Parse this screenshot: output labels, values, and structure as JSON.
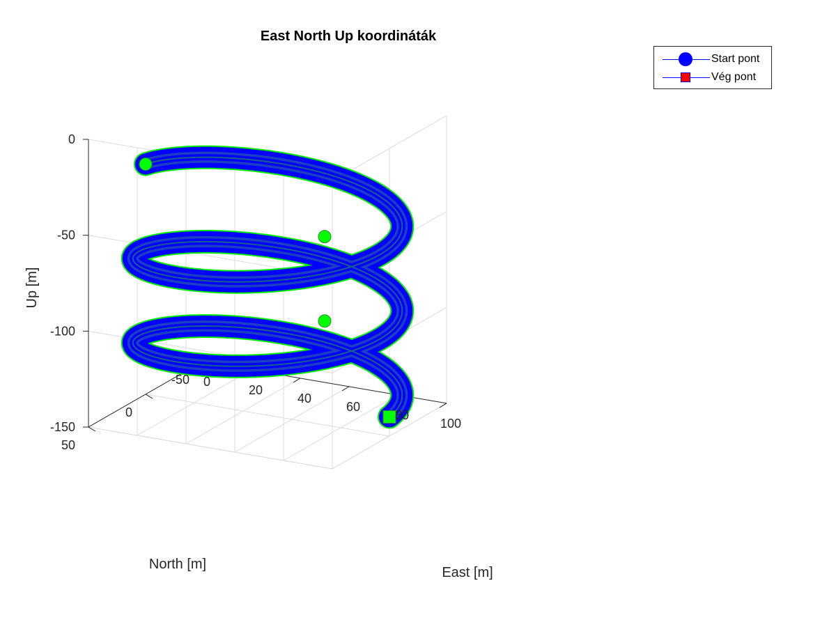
{
  "chart_data": {
    "type": "line",
    "projection": "3d",
    "title": "East North Up koordináták",
    "xlabel": "East [m]",
    "ylabel": "North [m]",
    "zlabel": "Up [m]",
    "xlim": [
      0,
      100
    ],
    "ylim": [
      -50,
      50
    ],
    "zlim": [
      -150,
      0
    ],
    "xticks": [
      "0",
      "20",
      "40",
      "60",
      "80",
      "100"
    ],
    "yticks": [
      "-50",
      "0",
      "50"
    ],
    "zticks": [
      "-150",
      "-100",
      "-50",
      "0"
    ],
    "grid": true,
    "legend_position": "top-right",
    "series": [
      {
        "name": "Start pont",
        "marker": "circle",
        "color": "#0000ff",
        "shape": "helix",
        "center_east": 50,
        "center_north": 0,
        "radius": 50,
        "turns": 2.5,
        "start": {
          "east": 0,
          "north": 0,
          "up": -30
        },
        "end": {
          "east": 100,
          "north": 0,
          "up": -140
        }
      },
      {
        "name": "Vég pont",
        "marker": "square",
        "color": "#ff0000"
      }
    ],
    "highlight_points": [
      {
        "east": 0,
        "north": 0,
        "up": -30
      },
      {
        "east": 50,
        "north": -50,
        "up": -74
      },
      {
        "east": 50,
        "north": -50,
        "up": -118
      },
      {
        "east": 100,
        "north": 0,
        "up": -140
      }
    ],
    "colors": {
      "tube": "#0000ff",
      "tube_edge": "#00ee00",
      "marker": "#00ff00",
      "grid": "#dcdcdc",
      "axis": "#262626"
    }
  }
}
